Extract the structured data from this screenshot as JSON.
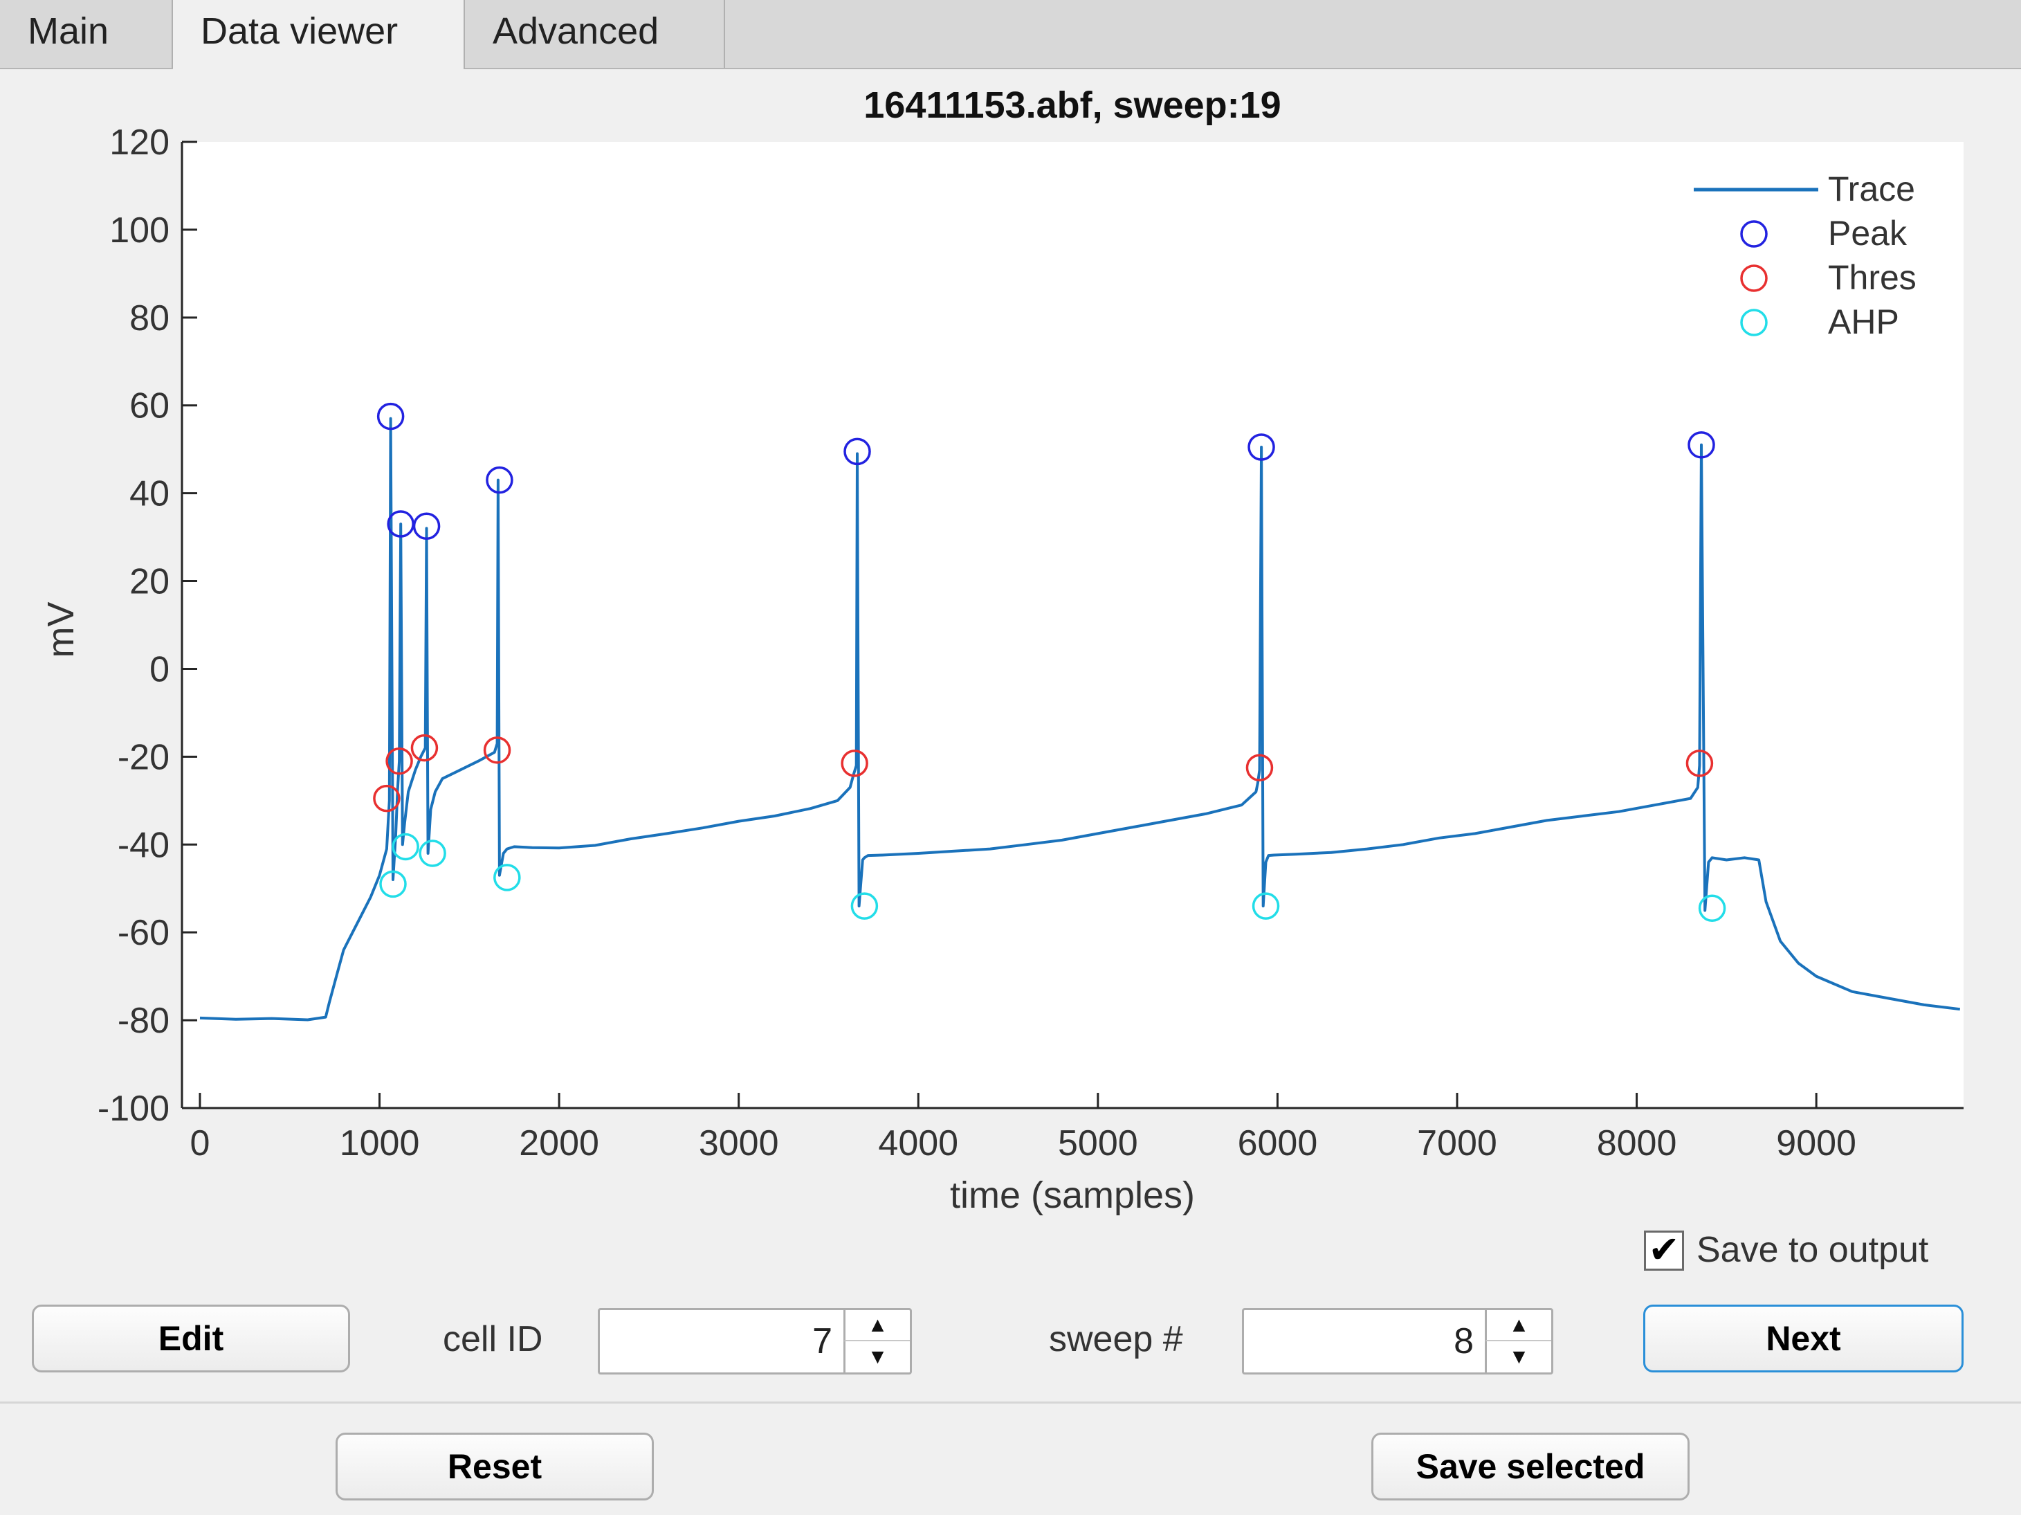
{
  "tabs": [
    {
      "label": "Main",
      "active": false
    },
    {
      "label": "Data viewer",
      "active": true
    },
    {
      "label": "Advanced",
      "active": false
    }
  ],
  "chart_data": {
    "type": "line",
    "title": "16411153.abf, sweep:19",
    "xlabel": "time (samples)",
    "ylabel": "mV",
    "xlim": [
      -100,
      9820
    ],
    "ylim": [
      -100,
      120
    ],
    "xticks": [
      0,
      1000,
      2000,
      3000,
      4000,
      5000,
      6000,
      7000,
      8000,
      9000
    ],
    "yticks": [
      -100,
      -80,
      -60,
      -40,
      -20,
      0,
      20,
      40,
      60,
      80,
      100,
      120
    ],
    "legend_position": "top-right",
    "series": [
      {
        "name": "Trace",
        "kind": "line",
        "color": "#1a72bb",
        "x": [
          0,
          200,
          400,
          600,
          700,
          720,
          760,
          800,
          850,
          900,
          950,
          1000,
          1040,
          1048,
          1055,
          1062,
          1075,
          1090,
          1100,
          1110,
          1118,
          1128,
          1140,
          1160,
          1200,
          1230,
          1255,
          1262,
          1270,
          1285,
          1310,
          1350,
          1450,
          1550,
          1640,
          1655,
          1660,
          1668,
          1690,
          1710,
          1750,
          1850,
          2000,
          2200,
          2400,
          2600,
          2800,
          3000,
          3200,
          3400,
          3550,
          3620,
          3640,
          3655,
          3660,
          3670,
          3690,
          3700,
          3720,
          3800,
          4000,
          4200,
          4400,
          4600,
          4800,
          5000,
          5200,
          5400,
          5600,
          5800,
          5880,
          5890,
          5900,
          5910,
          5920,
          5935,
          5950,
          5980,
          6100,
          6300,
          6500,
          6700,
          6900,
          7100,
          7300,
          7500,
          7700,
          7900,
          8100,
          8300,
          8340,
          8350,
          8360,
          8380,
          8400,
          8420,
          8500,
          8600,
          8680,
          8720,
          8800,
          8900,
          9000,
          9200,
          9400,
          9600,
          9800
        ],
        "values": [
          -79.5,
          -79.8,
          -79.6,
          -79.9,
          -79.3,
          -76,
          -70,
          -64,
          -60,
          -56,
          -52,
          -47,
          -41,
          -35,
          -30,
          57,
          -48,
          -38,
          -28,
          -21,
          33,
          -40,
          -35,
          -28,
          -23,
          -20,
          -18,
          32,
          -42,
          -32,
          -28,
          -25,
          -23,
          -21,
          -19,
          -17,
          43,
          -47,
          -42,
          -41,
          -40.5,
          -40.7,
          -40.8,
          -40.2,
          -38.7,
          -37.5,
          -36.2,
          -34.7,
          -33.5,
          -31.8,
          -30,
          -27,
          -24,
          -22,
          49,
          -54,
          -43.5,
          -43,
          -42.5,
          -42.4,
          -42,
          -41.5,
          -41,
          -40,
          -39,
          -37.5,
          -36,
          -34.5,
          -33,
          -31,
          -28,
          -26,
          -23,
          50.5,
          -54,
          -44,
          -42.5,
          -42.4,
          -42.2,
          -41.8,
          -41,
          -40,
          -38.5,
          -37.5,
          -36,
          -34.5,
          -33.5,
          -32.5,
          -31,
          -29.5,
          -27,
          -22,
          51,
          -55,
          -44,
          -43,
          -43.5,
          -43,
          -43.5,
          -53,
          -62,
          -67,
          -70,
          -73.5,
          -75,
          -76.5,
          -77.5
        ]
      },
      {
        "name": "Peak",
        "kind": "marker",
        "color": "#2222e0",
        "x": [
          1062,
          1118,
          1262,
          1668,
          3660,
          5910,
          8360
        ],
        "values": [
          57.5,
          33,
          32.5,
          43,
          49.5,
          50.5,
          51
        ]
      },
      {
        "name": "Thres",
        "kind": "marker",
        "color": "#e83030",
        "x": [
          1040,
          1110,
          1250,
          1655,
          3645,
          5900,
          8350
        ],
        "values": [
          -29.5,
          -21,
          -18,
          -18.5,
          -21.5,
          -22.5,
          -21.5
        ]
      },
      {
        "name": "AHP",
        "kind": "marker",
        "color": "#22dde8",
        "x": [
          1075,
          1145,
          1295,
          1710,
          3700,
          5935,
          8420
        ],
        "values": [
          -49,
          -40.5,
          -42,
          -47.5,
          -54,
          -54,
          -54.5
        ]
      }
    ]
  },
  "controls": {
    "save_to_output_label": "Save to output",
    "save_to_output_checked": true,
    "edit_label": "Edit",
    "cell_id_label": "cell ID",
    "cell_id_value": "7",
    "sweep_label": "sweep #",
    "sweep_value": "8",
    "next_label": "Next",
    "reset_label": "Reset",
    "save_selected_label": "Save selected",
    "spin_up_glyph": "▲",
    "spin_down_glyph": "▼",
    "check_glyph": "✔"
  }
}
